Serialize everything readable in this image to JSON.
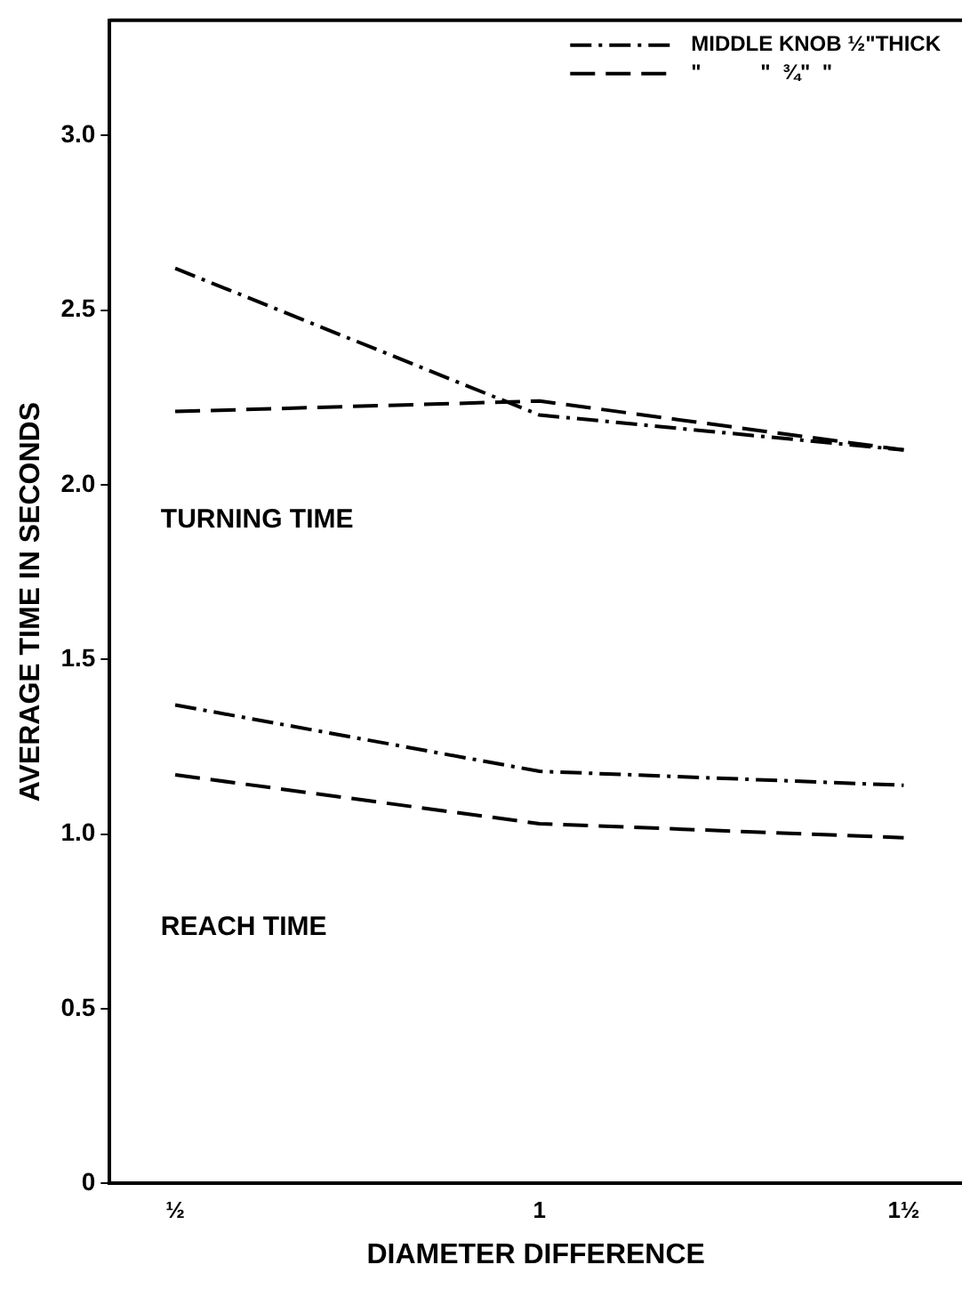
{
  "chart_data": {
    "type": "line",
    "xlabel": "DIAMETER DIFFERENCE",
    "ylabel": "AVERAGE TIME IN SECONDS",
    "x": [
      0.5,
      1,
      1.5
    ],
    "series": [
      {
        "name": "MIDDLE KNOB ½\"THICK",
        "color": "#000000",
        "line_style": "dashdot",
        "values": [
          2.62,
          2.2,
          2.1
        ]
      },
      {
        "name": "\"          \"  ¾\"  \"",
        "color": "#000000",
        "line_style": "dashed",
        "values": [
          2.21,
          2.24,
          2.1
        ]
      },
      {
        "color": "#000000",
        "line_style": "dashdot",
        "values": [
          1.37,
          1.18,
          1.14
        ]
      },
      {
        "color": "#000000",
        "line_style": "dashed",
        "values": [
          1.17,
          1.03,
          0.99
        ]
      }
    ],
    "xlim": [
      0.41,
      1.58
    ],
    "xticks": [
      {
        "value": 0.5,
        "label": "½"
      },
      1,
      {
        "value": 1.5,
        "label": "1½"
      }
    ],
    "ylim": [
      0,
      3.33
    ],
    "yticks": [
      0,
      0.5,
      {
        "value": 1,
        "label": "1.0"
      },
      1.5,
      {
        "value": 2,
        "label": "2.0"
      },
      2.5,
      {
        "value": 3,
        "label": "3.0"
      }
    ],
    "annotations": [
      "TURNING TIME",
      "REACH TIME"
    ],
    "grid": false,
    "legend": "top right",
    "marker": "none"
  }
}
